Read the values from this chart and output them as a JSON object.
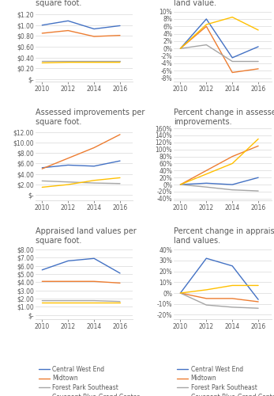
{
  "years": [
    2010,
    2012,
    2014,
    2016
  ],
  "colors": {
    "CWE": "#4472c4",
    "Midtown": "#ed7d31",
    "FPS": "#a5a5a5",
    "CBGC": "#ffc000"
  },
  "assessed_land": {
    "CWE": [
      1.0,
      1.08,
      0.93,
      0.99
    ],
    "Midtown": [
      0.85,
      0.9,
      0.79,
      0.81
    ],
    "FPS": [
      0.33,
      0.33,
      0.33,
      0.33
    ],
    "CBGC": [
      0.3,
      0.31,
      0.31,
      0.31
    ]
  },
  "assessed_land_ylim": [
    -0.05,
    1.32
  ],
  "assessed_land_yticks": [
    0,
    0.2,
    0.4,
    0.6,
    0.8,
    1.0,
    1.2
  ],
  "assessed_land_yticklabels": [
    "$-",
    "$0.20",
    "$0.40",
    "$0.60",
    "$0.80",
    "$1.00",
    "$1.20"
  ],
  "pct_assessed_land": {
    "CWE": [
      0.0,
      0.08,
      -0.025,
      0.005
    ],
    "Midtown": [
      0.0,
      0.06,
      -0.065,
      -0.055
    ],
    "FPS": [
      0.0,
      0.01,
      -0.035,
      -0.035
    ],
    "CBGC": [
      0.0,
      0.065,
      0.085,
      0.05
    ]
  },
  "pct_assessed_land_ylim": [
    -0.09,
    0.11
  ],
  "pct_assessed_land_yticks": [
    -0.08,
    -0.06,
    -0.04,
    -0.02,
    0.0,
    0.02,
    0.04,
    0.06,
    0.08,
    0.1
  ],
  "pct_assessed_land_yticklabels": [
    "-8%",
    "-6%",
    "-4%",
    "-2%",
    "0%",
    "2%",
    "4%",
    "6%",
    "8%",
    "10%"
  ],
  "assessed_impr": {
    "CWE": [
      5.2,
      5.7,
      5.5,
      6.5
    ],
    "Midtown": [
      5.0,
      7.0,
      9.0,
      11.5
    ],
    "FPS": [
      2.7,
      2.5,
      2.3,
      2.2
    ],
    "CBGC": [
      1.5,
      2.0,
      2.8,
      3.3
    ]
  },
  "assessed_impr_ylim": [
    -1.0,
    13.0
  ],
  "assessed_impr_yticks": [
    0,
    2,
    4,
    6,
    8,
    10,
    12
  ],
  "assessed_impr_yticklabels": [
    "$-",
    "$2.00",
    "$4.00",
    "$6.00",
    "$8.00",
    "$10.00",
    "$12.00"
  ],
  "pct_assessed_impr": {
    "CWE": [
      0.0,
      0.04,
      0.0,
      0.2
    ],
    "Midtown": [
      0.0,
      0.4,
      0.8,
      1.1
    ],
    "FPS": [
      0.0,
      -0.07,
      -0.15,
      -0.18
    ],
    "CBGC": [
      0.0,
      0.3,
      0.6,
      1.3
    ]
  },
  "pct_assessed_impr_ylim": [
    -0.45,
    1.65
  ],
  "pct_assessed_impr_yticks": [
    -0.4,
    -0.2,
    0.0,
    0.2,
    0.4,
    0.6,
    0.8,
    1.0,
    1.2,
    1.4,
    1.6
  ],
  "pct_assessed_impr_yticklabels": [
    "-40%",
    "-20%",
    "0%",
    "20%",
    "40%",
    "60%",
    "80%",
    "100%",
    "120%",
    "140%",
    "160%"
  ],
  "appraised_land": {
    "CWE": [
      5.5,
      6.6,
      6.9,
      5.1
    ],
    "Midtown": [
      4.1,
      4.1,
      4.1,
      3.9
    ],
    "FPS": [
      1.75,
      1.75,
      1.75,
      1.65
    ],
    "CBGC": [
      1.55,
      1.55,
      1.55,
      1.55
    ]
  },
  "appraised_land_ylim": [
    -0.5,
    8.5
  ],
  "appraised_land_yticks": [
    0,
    1,
    2,
    3,
    4,
    5,
    6,
    7,
    8
  ],
  "appraised_land_yticklabels": [
    "$-",
    "$1.00",
    "$2.00",
    "$3.00",
    "$4.00",
    "$5.00",
    "$6.00",
    "$7.00",
    "$8.00"
  ],
  "pct_appraised_land": {
    "CWE": [
      0.0,
      0.32,
      0.25,
      -0.06
    ],
    "Midtown": [
      0.0,
      -0.05,
      -0.05,
      -0.08
    ],
    "FPS": [
      0.0,
      -0.11,
      -0.13,
      -0.14
    ],
    "CBGC": [
      0.0,
      0.03,
      0.07,
      0.07
    ]
  },
  "pct_appraised_land_ylim": [
    -0.24,
    0.44
  ],
  "pct_appraised_land_yticks": [
    -0.2,
    -0.1,
    0.0,
    0.1,
    0.2,
    0.3,
    0.4
  ],
  "pct_appraised_land_yticklabels": [
    "-20%",
    "-10%",
    "0%",
    "10%",
    "20%",
    "30%",
    "40%"
  ],
  "legend_labels": [
    "Central West End",
    "Midtown",
    "Forest Park Southeast",
    "Covenant Blue-Grand Center"
  ],
  "bg_color": "#ffffff",
  "grid_color": "#d9d9d9",
  "text_color": "#595959",
  "title_fontsize": 7.0,
  "tick_fontsize": 5.5,
  "legend_fontsize": 5.5
}
